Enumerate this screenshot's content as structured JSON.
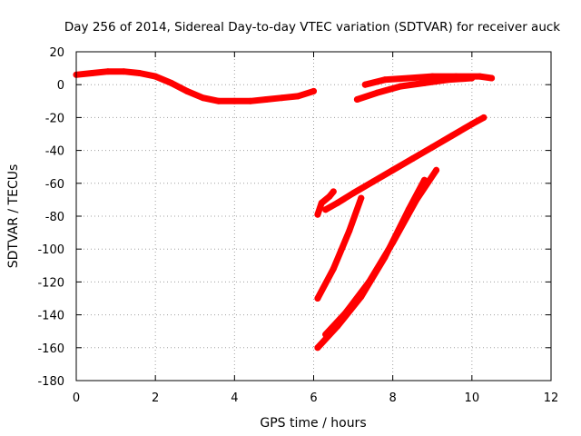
{
  "chart_data": {
    "type": "line",
    "title": "Day 256 of 2014, Sidereal Day-to-day VTEC variation (SDTVAR) for receiver auck",
    "xlabel": "GPS time / hours",
    "ylabel": "SDTVAR / TECUs",
    "xlim": [
      0,
      12
    ],
    "ylim": [
      -180,
      20
    ],
    "xticks": [
      0,
      2,
      4,
      6,
      8,
      10,
      12
    ],
    "yticks": [
      20,
      0,
      -20,
      -40,
      -60,
      -80,
      -100,
      -120,
      -140,
      -160,
      -180
    ],
    "grid": true,
    "color": "#ff0000",
    "series": [
      {
        "x": [
          0.0,
          0.4,
          0.8,
          1.2,
          1.6,
          2.0,
          2.4,
          2.8,
          3.2,
          3.6,
          4.0,
          4.4,
          4.8,
          5.2,
          5.6,
          6.0
        ],
        "y": [
          6,
          7,
          8,
          8,
          7,
          5,
          1,
          -4,
          -8,
          -10,
          -10,
          -10,
          -9,
          -8,
          -7,
          -4
        ]
      },
      {
        "x": [
          6.1,
          6.2,
          6.4,
          6.5
        ],
        "y": [
          -79,
          -72,
          -68,
          -65
        ]
      },
      {
        "x": [
          6.3,
          6.6,
          7.0,
          7.5,
          8.0,
          8.5,
          9.0,
          9.5,
          10.0,
          10.3
        ],
        "y": [
          -76,
          -72,
          -66,
          -59,
          -52,
          -45,
          -38,
          -31,
          -24,
          -20
        ]
      },
      {
        "x": [
          6.1,
          6.5,
          6.9,
          7.2
        ],
        "y": [
          -130,
          -112,
          -89,
          -69
        ]
      },
      {
        "x": [
          6.1,
          6.6,
          7.2,
          7.8,
          8.4,
          8.8
        ],
        "y": [
          -160,
          -147,
          -129,
          -105,
          -76,
          -58
        ]
      },
      {
        "x": [
          6.3,
          6.8,
          7.4,
          8.0,
          8.6,
          9.1
        ],
        "y": [
          -152,
          -139,
          -120,
          -96,
          -70,
          -52
        ]
      },
      {
        "x": [
          7.1,
          7.6,
          8.2,
          8.8,
          9.4,
          10.0
        ],
        "y": [
          -9,
          -5,
          -1,
          1,
          3,
          4
        ]
      },
      {
        "x": [
          7.3,
          7.8,
          8.4,
          9.0,
          9.6,
          10.2,
          10.5
        ],
        "y": [
          0,
          3,
          4,
          5,
          5,
          5,
          4
        ]
      }
    ]
  }
}
